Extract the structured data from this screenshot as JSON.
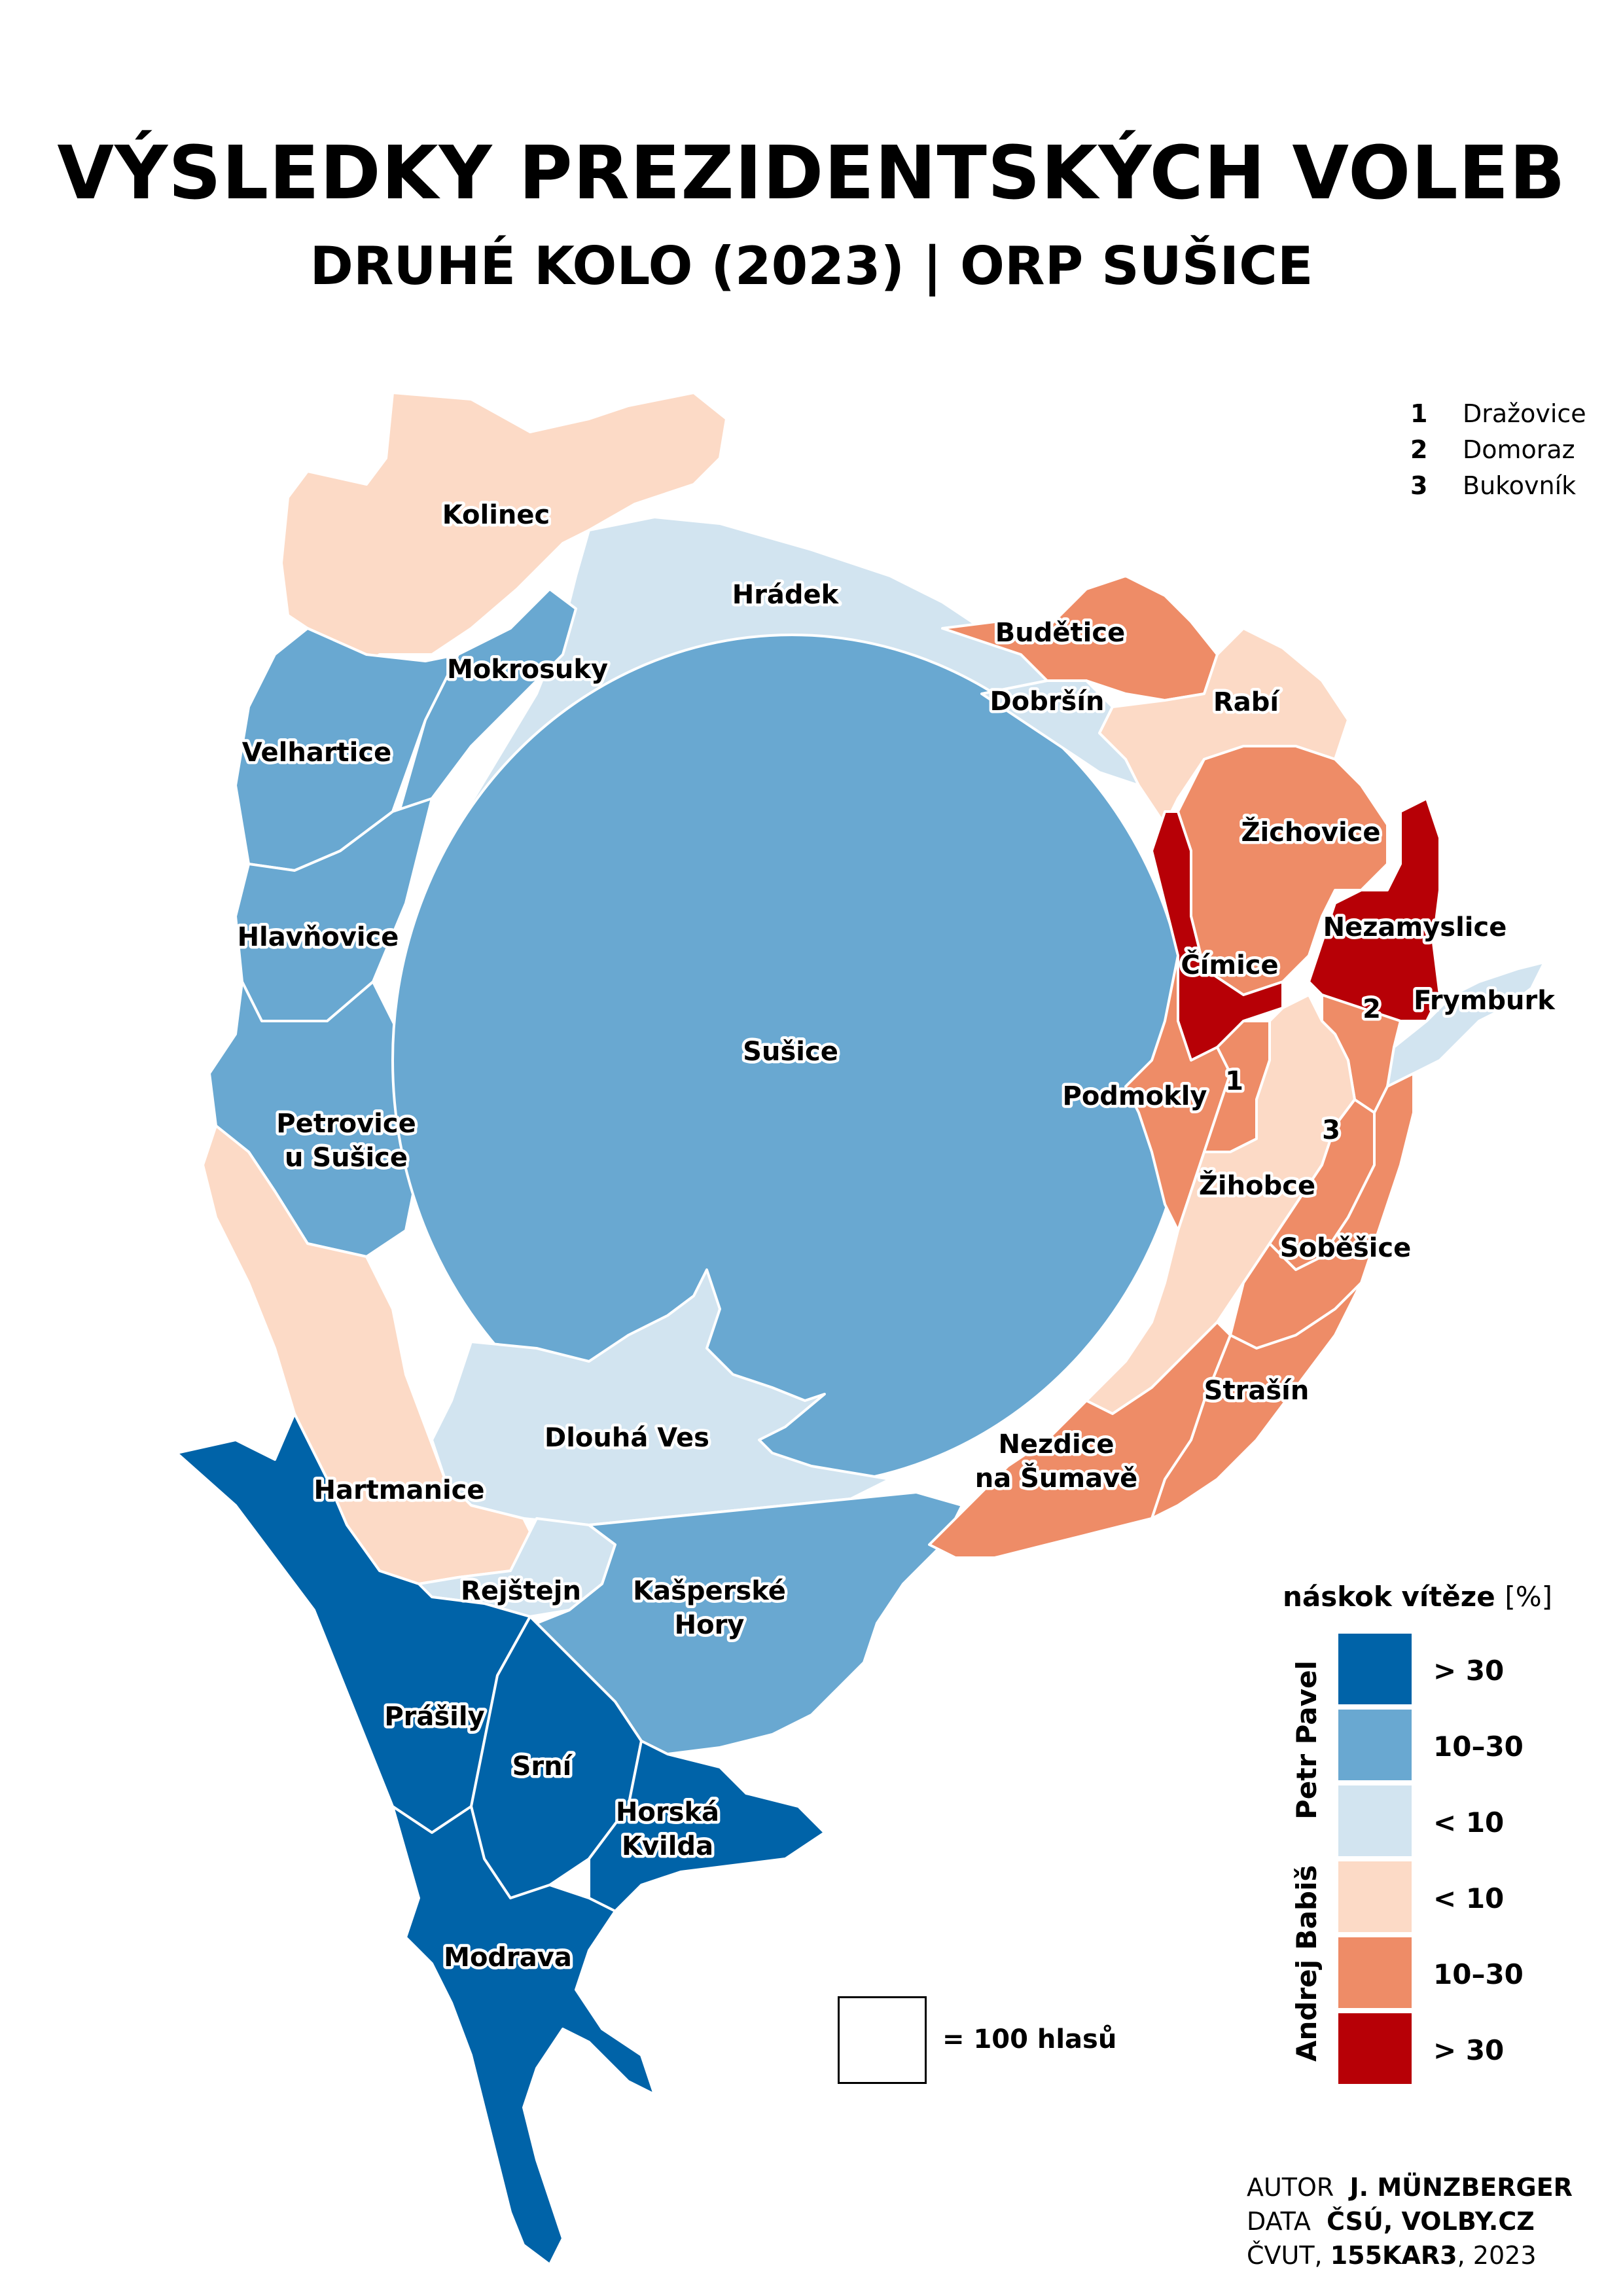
{
  "title": "VÝSLEDKY PREZIDENTSKÝCH VOLEB",
  "subtitle": "DRUHÉ KOLO (2023) | ORP SUŠICE",
  "colors": {
    "pavel_gt30": "#0063a8",
    "pavel_10_30": "#69a8d1",
    "pavel_lt10": "#d2e4f0",
    "babis_lt10": "#fcdac6",
    "babis_10_30": "#ee8c67",
    "babis_gt30": "#b70006"
  },
  "municipalities": [
    {
      "name": "Kolinec",
      "class": "babis_lt10"
    },
    {
      "name": "Hrádek",
      "class": "pavel_lt10"
    },
    {
      "name": "Mokrosuky",
      "class": "pavel_10_30"
    },
    {
      "name": "Velhartice",
      "class": "pavel_10_30"
    },
    {
      "name": "Hlavňovice",
      "class": "pavel_10_30"
    },
    {
      "name": "Petrovice u Sušice",
      "class": "pavel_10_30"
    },
    {
      "name": "Sušice",
      "class": "pavel_10_30"
    },
    {
      "name": "Dlouhá Ves",
      "class": "pavel_lt10"
    },
    {
      "name": "Hartmanice",
      "class": "babis_lt10"
    },
    {
      "name": "Rejštejn",
      "class": "pavel_lt10"
    },
    {
      "name": "Kašperské Hory",
      "class": "pavel_10_30"
    },
    {
      "name": "Prášily",
      "class": "pavel_gt30"
    },
    {
      "name": "Srní",
      "class": "pavel_gt30"
    },
    {
      "name": "Horská Kvilda",
      "class": "pavel_gt30"
    },
    {
      "name": "Modrava",
      "class": "pavel_gt30"
    },
    {
      "name": "Budětice",
      "class": "babis_10_30"
    },
    {
      "name": "Dobršín",
      "class": "pavel_lt10"
    },
    {
      "name": "Rabí",
      "class": "babis_lt10"
    },
    {
      "name": "Žichovice",
      "class": "babis_10_30"
    },
    {
      "name": "Nezamyslice",
      "class": "babis_gt30"
    },
    {
      "name": "Čímice",
      "class": "babis_gt30"
    },
    {
      "name": "Frymburk",
      "class": "pavel_lt10"
    },
    {
      "name": "Podmokly",
      "class": "babis_10_30"
    },
    {
      "name": "Žihobce",
      "class": "babis_lt10"
    },
    {
      "name": "Soběšice",
      "class": "babis_10_30"
    },
    {
      "name": "Strašín",
      "class": "babis_10_30"
    },
    {
      "name": "Nezdice na Šumavě",
      "class": "babis_10_30"
    },
    {
      "name": "Dražovice",
      "class": "babis_10_30"
    },
    {
      "name": "Domoraz",
      "class": "babis_10_30"
    },
    {
      "name": "Bukovník",
      "class": "babis_10_30"
    }
  ],
  "labels": {
    "kolinec": "Kolinec",
    "hradek": "Hrádek",
    "mokrosuky": "Mokrosuky",
    "velhartice": "Velhartice",
    "hlavnovice": "Hlavňovice",
    "petrovice_1": "Petrovice",
    "petrovice_2": "u Sušice",
    "susice": "Sušice",
    "dlouha_ves": "Dlouhá Ves",
    "hartmanice": "Hartmanice",
    "rejstejn": "Rejštejn",
    "kasperske_1": "Kašperské",
    "kasperske_2": "Hory",
    "prasily": "Prášily",
    "srni": "Srní",
    "horska_1": "Horská",
    "horska_2": "Kvilda",
    "modrava": "Modrava",
    "budetice": "Budětice",
    "dobrsin": "Dobršín",
    "rabi": "Rabí",
    "zichovice": "Žichovice",
    "nezamyslice": "Nezamyslice",
    "cimice": "Čímice",
    "frymburk": "Frymburk",
    "podmokly": "Podmokly",
    "zihobce": "Žihobce",
    "sobesice": "Soběšice",
    "strasin": "Strašín",
    "nezdice_1": "Nezdice",
    "nezdice_2": "na Šumavě",
    "n1": "1",
    "n2": "2",
    "n3": "3"
  },
  "key": [
    {
      "number": "1",
      "name": "Dražovice"
    },
    {
      "number": "2",
      "name": "Domoraz"
    },
    {
      "number": "3",
      "name": "Bukovník"
    }
  ],
  "legend": {
    "title": "náskok vítěze",
    "unit": "[%]",
    "candidate_pavel": "Petr Pavel",
    "candidate_babis": "Andrej Babiš",
    "items": [
      {
        "label": "> 30",
        "color": "#0063a8"
      },
      {
        "label": "10–30",
        "color": "#69a8d1"
      },
      {
        "label": "< 10",
        "color": "#d2e4f0"
      },
      {
        "label": "< 10",
        "color": "#fcdac6"
      },
      {
        "label": "10–30",
        "color": "#ee8c67"
      },
      {
        "label": "> 30",
        "color": "#b70006"
      }
    ]
  },
  "scale": {
    "label": "= 100 hlasů"
  },
  "credits": {
    "author_key": "AUTOR",
    "author_val": "J. MÜNZBERGER",
    "data_key": "DATA",
    "data_val": "ČSÚ, VOLBY.CZ",
    "school": "ČVUT,",
    "course": "155KAR3",
    "year": "2023"
  }
}
